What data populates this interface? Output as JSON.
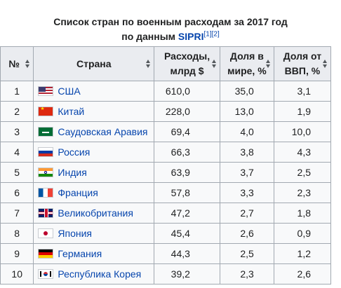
{
  "caption": {
    "line1": "Список стран по военным расходам за 2017 год",
    "line2_prefix": "по данным ",
    "link": "SIPRI",
    "refs": "[1][2]"
  },
  "headers": {
    "rank": "№",
    "country": "Страна",
    "spending_line1": "Расходы,",
    "spending_line2": "млрд $",
    "world_share_line1": "Доля в",
    "world_share_line2": "мире, %",
    "gdp_share_line1": "Доля от",
    "gdp_share_line2": "ВВП, %"
  },
  "rows": [
    {
      "rank": "1",
      "flag": "flag-usa",
      "country": "США",
      "spending": "610,0",
      "world": "35,0",
      "gdp": "3,1"
    },
    {
      "rank": "2",
      "flag": "flag-china",
      "country": "Китай",
      "spending": "228,0",
      "world": "13,0",
      "gdp": "1,9"
    },
    {
      "rank": "3",
      "flag": "flag-saudi",
      "country": "Саудовская Аравия",
      "spending": "69,4",
      "world": "4,0",
      "gdp": "10,0"
    },
    {
      "rank": "4",
      "flag": "flag-russia",
      "country": "Россия",
      "spending": "66,3",
      "world": "3,8",
      "gdp": "4,3"
    },
    {
      "rank": "5",
      "flag": "flag-india",
      "country": "Индия",
      "spending": "63,9",
      "world": "3,7",
      "gdp": "2,5"
    },
    {
      "rank": "6",
      "flag": "flag-france",
      "country": "Франция",
      "spending": "57,8",
      "world": "3,3",
      "gdp": "2,3"
    },
    {
      "rank": "7",
      "flag": "flag-uk",
      "country": "Великобритания",
      "spending": "47,2",
      "world": "2,7",
      "gdp": "1,8"
    },
    {
      "rank": "8",
      "flag": "flag-japan",
      "country": "Япония",
      "spending": "45,4",
      "world": "2,6",
      "gdp": "0,9"
    },
    {
      "rank": "9",
      "flag": "flag-germany",
      "country": "Германия",
      "spending": "44,3",
      "world": "2,5",
      "gdp": "1,2"
    },
    {
      "rank": "10",
      "flag": "flag-korea",
      "country": "Республика Корея",
      "spending": "39,2",
      "world": "2,3",
      "gdp": "2,6"
    }
  ]
}
